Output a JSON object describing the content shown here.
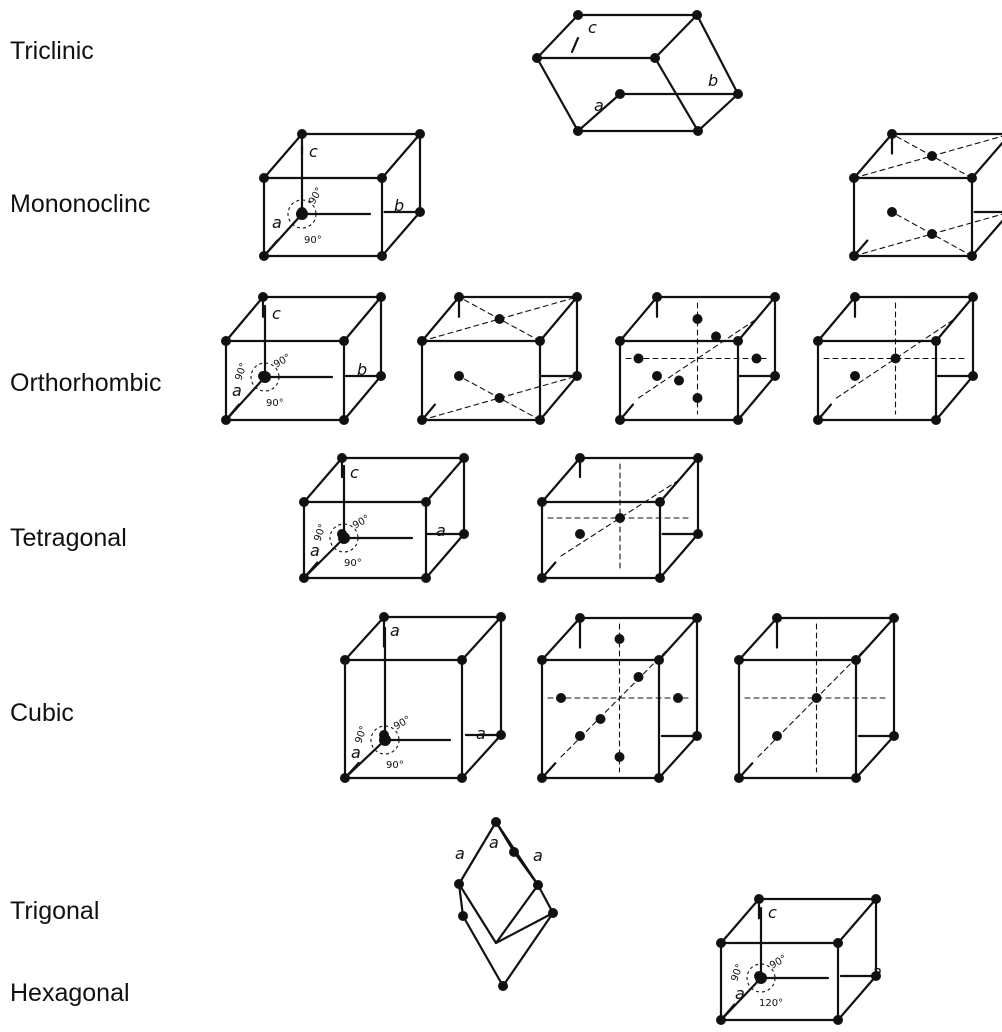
{
  "systems": [
    {
      "name": "Triclinic"
    },
    {
      "name": "Mononoclinc"
    },
    {
      "name": "Orthorhombic"
    },
    {
      "name": "Tetragonal"
    },
    {
      "name": "Cubic"
    },
    {
      "name": "Trigonal"
    },
    {
      "name": "Hexagonal"
    }
  ],
  "cells": [
    {
      "system": "Triclinic",
      "kind": "primitive",
      "axes": [
        "a",
        "b",
        "c"
      ],
      "angles": []
    },
    {
      "system": "Mononoclinc",
      "kind": "primitive",
      "axes": [
        "a",
        "b",
        "c"
      ],
      "angles": [
        "90°",
        "90°"
      ]
    },
    {
      "system": "Mononoclinc",
      "kind": "base-centered",
      "axes": [],
      "angles": []
    },
    {
      "system": "Orthorhombic",
      "kind": "primitive",
      "axes": [
        "a",
        "b",
        "c"
      ],
      "angles": [
        "90°",
        "90°",
        "90°"
      ]
    },
    {
      "system": "Orthorhombic",
      "kind": "base-centered",
      "axes": [],
      "angles": []
    },
    {
      "system": "Orthorhombic",
      "kind": "face-centered",
      "axes": [],
      "angles": []
    },
    {
      "system": "Orthorhombic",
      "kind": "body-centered",
      "axes": [],
      "angles": []
    },
    {
      "system": "Tetragonal",
      "kind": "primitive",
      "axes": [
        "a",
        "a",
        "c"
      ],
      "angles": [
        "90°",
        "90°",
        "90°"
      ]
    },
    {
      "system": "Tetragonal",
      "kind": "body-centered",
      "axes": [],
      "angles": []
    },
    {
      "system": "Cubic",
      "kind": "primitive",
      "axes": [
        "a",
        "a",
        "a"
      ],
      "angles": [
        "90°",
        "90°",
        "90°"
      ]
    },
    {
      "system": "Cubic",
      "kind": "face-centered",
      "axes": [],
      "angles": []
    },
    {
      "system": "Cubic",
      "kind": "body-centered",
      "axes": [],
      "angles": []
    },
    {
      "system": "Trigonal",
      "kind": "rhombohedral",
      "axes": [
        "a",
        "a",
        "a"
      ],
      "angles": []
    },
    {
      "system": "Hexagonal",
      "kind": "primitive",
      "axes": [
        "a",
        "a",
        "c"
      ],
      "angles": [
        "90°",
        "90°",
        "120°"
      ]
    }
  ]
}
